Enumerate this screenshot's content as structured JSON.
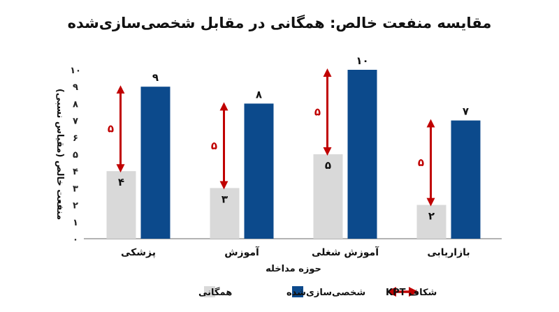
{
  "chart_data": {
    "type": "bar",
    "title": "مقایسه منفعت خالص: همگانی در مقابل شخصی‌سازی‌شده",
    "xlabel": "حوزه مداخله",
    "ylabel": "منفعت خالص (مقیاس نسبی)",
    "categories": [
      "پزشکی",
      "آموزش",
      "آموزش شغلی",
      "بازاریابی"
    ],
    "series": [
      {
        "name": "همگانی",
        "color": "#d9d9d9",
        "values": [
          4,
          3,
          5,
          2
        ]
      },
      {
        "name": "شخصی‌سازی‌شده",
        "color": "#0c4a8c",
        "values": [
          9,
          8,
          10,
          7
        ]
      }
    ],
    "gap": {
      "name": "شکاف KPT",
      "color": "#c00000",
      "values": [
        5,
        5,
        5,
        5
      ]
    },
    "ylim": [
      0,
      10
    ],
    "yticks": [
      "۰",
      "۱",
      "۲",
      "۳",
      "۴",
      "۵",
      "۶",
      "۷",
      "۸",
      "۹",
      "۱۰"
    ],
    "grid": false,
    "legend_position": "bottom",
    "value_labels": {
      "mass": [
        "۴",
        "۳",
        "۵",
        "۲"
      ],
      "personalized": [
        "۹",
        "۸",
        "۱۰",
        "۷"
      ],
      "gap": [
        "۵",
        "۵",
        "۵",
        "۵"
      ]
    }
  }
}
